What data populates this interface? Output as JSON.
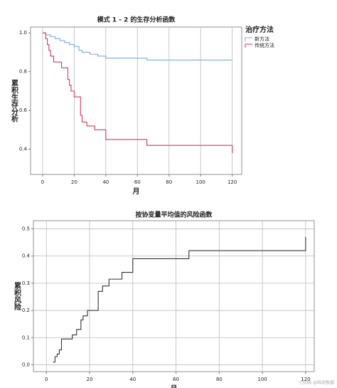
{
  "chart_data": [
    {
      "type": "line",
      "step": true,
      "title": "模式 1 - 2 的生存分析函数",
      "xlabel": "月",
      "ylabel": "累积生存分析",
      "legend_title": "治疗方法",
      "legend": "upper right outside",
      "series": [
        {
          "name": "新方法",
          "color": "#7fa8dd",
          "x": [
            0,
            2,
            5,
            8,
            11,
            14,
            17,
            20,
            23,
            25,
            30,
            35,
            40,
            66,
            120
          ],
          "values": [
            1.0,
            0.99,
            0.98,
            0.97,
            0.96,
            0.95,
            0.94,
            0.93,
            0.91,
            0.9,
            0.89,
            0.88,
            0.87,
            0.86,
            0.86
          ]
        },
        {
          "name": "传统方法",
          "color": "#d6375a",
          "x": [
            0,
            2,
            3,
            4,
            5,
            7,
            12,
            16,
            17,
            18,
            20,
            24,
            25,
            28,
            33,
            40,
            66,
            120,
            120
          ],
          "values": [
            1.0,
            0.97,
            0.94,
            0.91,
            0.88,
            0.85,
            0.82,
            0.76,
            0.73,
            0.7,
            0.67,
            0.575,
            0.54,
            0.52,
            0.5,
            0.45,
            0.42,
            0.42,
            0.38
          ]
        }
      ],
      "xlim": [
        -7.6,
        126
      ],
      "ylim": [
        0.27,
        1.03
      ],
      "xticks": [
        0,
        20,
        40,
        60,
        80,
        100,
        120
      ],
      "yticks": [
        0.4,
        0.6,
        0.8,
        {
          "value": 1,
          "label": "1.0"
        }
      ],
      "grid": [
        "x"
      ]
    },
    {
      "type": "line",
      "step": true,
      "title": "按协变量平均值的风险函数",
      "xlabel": "月",
      "ylabel": "累积风险",
      "series": [
        {
          "color": "#333333",
          "x": [
            3,
            4,
            5,
            6,
            7,
            12,
            14,
            16,
            17,
            19,
            24,
            26,
            29,
            35,
            40,
            66,
            120
          ],
          "values": [
            0.01,
            0.03,
            0.04,
            0.055,
            0.095,
            0.11,
            0.13,
            0.165,
            0.18,
            0.2,
            0.27,
            0.29,
            0.315,
            0.34,
            0.39,
            0.42,
            0.47
          ]
        }
      ],
      "xlim": [
        -6,
        124
      ],
      "ylim": [
        -0.025,
        0.53
      ],
      "xticks": [
        0,
        20,
        40,
        60,
        80,
        100,
        120
      ],
      "yticks": [
        {
          "value": 0,
          "label": "0.0"
        },
        0.1,
        0.2,
        0.3,
        0.4,
        0.5
      ],
      "grid": [
        "x",
        "y"
      ]
    }
  ],
  "watermark": "CSDN @科研数据"
}
